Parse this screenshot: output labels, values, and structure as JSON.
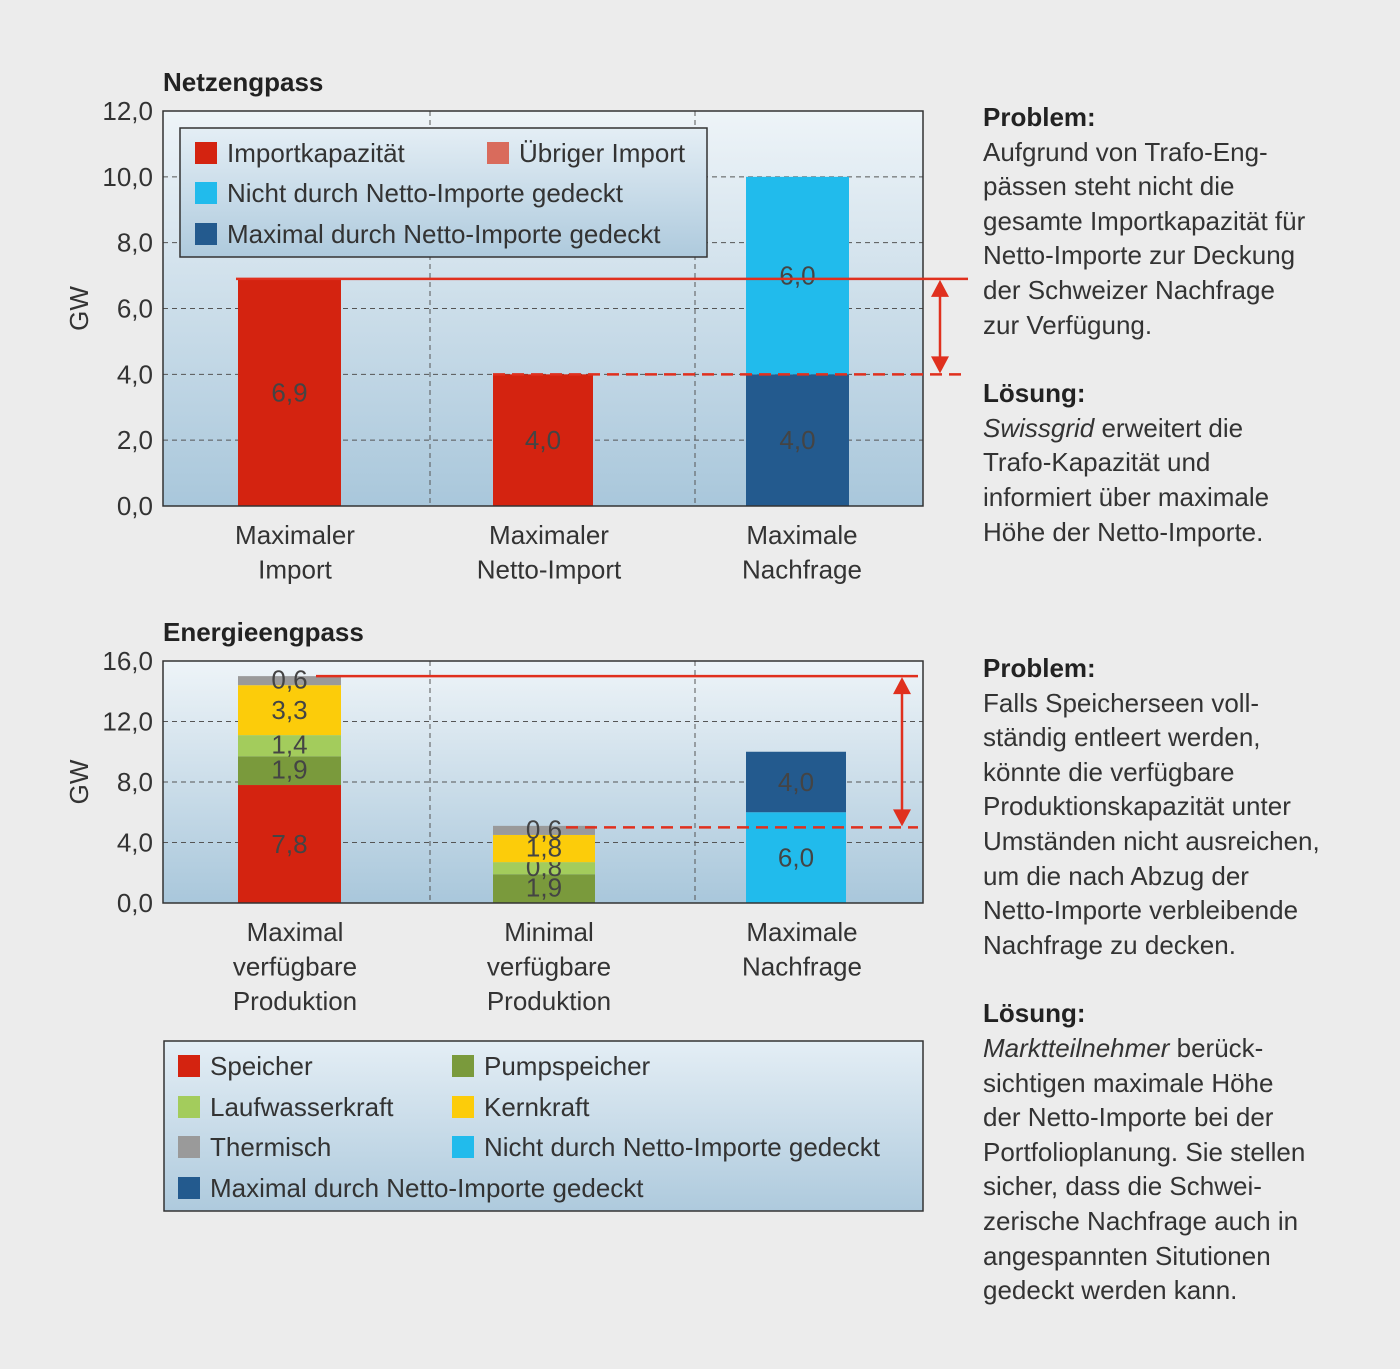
{
  "colors": {
    "speicher": "#d42310",
    "uebriger_import": "#d96b5c",
    "pumpspeicher": "#7a9a3c",
    "laufwasser": "#a3cc5c",
    "kernkraft": "#fccc0a",
    "thermisch": "#9a9a9a",
    "nicht_gedeckt": "#21bbec",
    "maximal_gedeckt": "#235a8e",
    "reference": "#e0301e"
  },
  "chart_data": [
    {
      "type": "bar",
      "title": "Netzengpass",
      "ylabel": "GW",
      "ylim": [
        0,
        12
      ],
      "yticks": [
        "0,0",
        "2,0",
        "4,0",
        "6,0",
        "8,0",
        "10,0",
        "12,0"
      ],
      "grid": true,
      "categories": [
        [
          "Maximaler",
          "Import"
        ],
        [
          "Maximaler",
          "Netto-Import"
        ],
        [
          "Maximale",
          "Nachfrage"
        ]
      ],
      "legend": [
        {
          "label": "Importkapazität",
          "color": "#d42310"
        },
        {
          "label": "Übriger Import",
          "color": "#d96b5c"
        },
        {
          "label": "Nicht durch Netto-Importe gedeckt",
          "color": "#21bbec"
        },
        {
          "label": "Maximal durch Netto-Importe gedeckt",
          "color": "#235a8e"
        }
      ],
      "stacks": [
        [
          {
            "value": 6.9,
            "label": "6,9",
            "color": "#d42310"
          }
        ],
        [
          {
            "value": 4.0,
            "label": "4,0",
            "color": "#d42310"
          }
        ],
        [
          {
            "value": 4.0,
            "label": "4,0",
            "color": "#235a8e"
          },
          {
            "value": 6.0,
            "label": "6,0",
            "color": "#21bbec"
          }
        ]
      ],
      "reference_lines": [
        {
          "y": 6.9,
          "style": "solid"
        },
        {
          "y": 4.0,
          "style": "dashed"
        }
      ]
    },
    {
      "type": "bar",
      "title": "Energieengpass",
      "ylabel": "GW",
      "ylim": [
        0,
        16
      ],
      "yticks": [
        "0,0",
        "4,0",
        "8,0",
        "12,0",
        "16,0"
      ],
      "grid": true,
      "categories": [
        [
          "Maximal",
          "verfügbare",
          "Produktion"
        ],
        [
          "Minimal",
          "verfügbare",
          "Produktion"
        ],
        [
          "Maximale",
          "Nachfrage"
        ]
      ],
      "legend": [
        {
          "label": "Speicher",
          "color": "#d42310"
        },
        {
          "label": "Pumpspeicher",
          "color": "#7a9a3c"
        },
        {
          "label": "Laufwasserkraft",
          "color": "#a3cc5c"
        },
        {
          "label": "Kernkraft",
          "color": "#fccc0a"
        },
        {
          "label": "Thermisch",
          "color": "#9a9a9a"
        },
        {
          "label": "Nicht durch Netto-Importe gedeckt",
          "color": "#21bbec"
        },
        {
          "label": "Maximal durch Netto-Importe gedeckt",
          "color": "#235a8e"
        }
      ],
      "stacks": [
        [
          {
            "value": 7.8,
            "label": "7,8",
            "color": "#d42310"
          },
          {
            "value": 1.9,
            "label": "1,9",
            "color": "#7a9a3c"
          },
          {
            "value": 1.4,
            "label": "1,4",
            "color": "#a3cc5c"
          },
          {
            "value": 3.3,
            "label": "3,3",
            "color": "#fccc0a"
          },
          {
            "value": 0.6,
            "label": "0,6",
            "color": "#9a9a9a"
          }
        ],
        [
          {
            "value": 1.9,
            "label": "1,9",
            "color": "#7a9a3c"
          },
          {
            "value": 0.8,
            "label": "0,8",
            "color": "#a3cc5c"
          },
          {
            "value": 1.8,
            "label": "1,8",
            "color": "#fccc0a"
          },
          {
            "value": 0.6,
            "label": "0,6",
            "color": "#9a9a9a"
          }
        ],
        [
          {
            "value": 6.0,
            "label": "6,0",
            "color": "#21bbec"
          },
          {
            "value": 4.0,
            "label": "4,0",
            "color": "#235a8e"
          }
        ]
      ],
      "reference_lines": [
        {
          "y": 15.0,
          "style": "solid"
        },
        {
          "y": 5.0,
          "style": "dashed"
        }
      ]
    }
  ],
  "side_text": {
    "netz": {
      "problem_title": "Problem:",
      "problem_lines": [
        "Aufgrund von Trafo-Eng-",
        "pässen steht nicht die",
        "gesamte Importkapazität für",
        "Netto-Importe zur Deckung",
        "der Schweizer Nachfrage",
        "zur Verfügung."
      ],
      "loesung_title": "Lösung:",
      "loesung_italic": "Swissgrid",
      "loesung_first_rest": " erweitert die",
      "loesung_lines": [
        "Trafo-Kapazität und",
        "informiert über maximale",
        "Höhe der Netto-Importe."
      ]
    },
    "energie": {
      "problem_title": "Problem:",
      "problem_lines": [
        "Falls Speicherseen voll-",
        "ständig entleert werden,",
        "könnte die verfügbare",
        "Produktionskapazität unter",
        "Umständen nicht ausreichen,",
        "um die nach Abzug der",
        "Netto-Importe verbleibende",
        "Nachfrage zu decken."
      ],
      "loesung_title": "Lösung:",
      "loesung_italic": "Marktteilnehmer",
      "loesung_first_rest": " berück-",
      "loesung_lines": [
        "sichtigen  maximale Höhe",
        "der Netto-Importe bei der",
        "Portfolioplanung. Sie stellen",
        "sicher, dass die Schwei-",
        "zerische Nachfrage auch in",
        "angespannten Situtionen",
        "gedeckt werden kann."
      ]
    }
  }
}
